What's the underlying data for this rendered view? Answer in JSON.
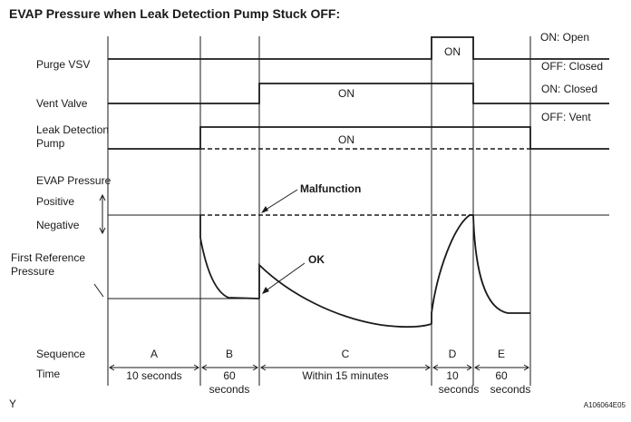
{
  "title": "EVAP Pressure when Leak Detection Pump Stuck OFF:",
  "rows": {
    "purge_vsv": "Purge VSV",
    "vent_valve": "Vent Valve",
    "ldp_line1": "Leak Detection",
    "ldp_line2": "Pump",
    "evap_pressure": "EVAP Pressure",
    "positive": "Positive",
    "negative": "Negative",
    "first_ref_line1": "First Reference",
    "first_ref_line2": "Pressure",
    "sequence": "Sequence",
    "time": "Time"
  },
  "right_labels": {
    "on_open": "ON: Open",
    "off_closed": "OFF: Closed",
    "on_closed": "ON: Closed",
    "off_vent": "OFF: Vent"
  },
  "signals": {
    "purge_on": "ON",
    "vent_on": "ON",
    "ldp_on": "ON"
  },
  "annotations": {
    "malfunction": "Malfunction",
    "ok": "OK"
  },
  "phases": [
    {
      "letter": "A",
      "time": "10 seconds",
      "time2": ""
    },
    {
      "letter": "B",
      "time": "60",
      "time2": "seconds"
    },
    {
      "letter": "C",
      "time": "Within 15 minutes",
      "time2": ""
    },
    {
      "letter": "D",
      "time": "10",
      "time2": "seconds"
    },
    {
      "letter": "E",
      "time": "60",
      "time2": "seconds"
    }
  ],
  "footer": {
    "left": "Y",
    "right": "A106064E05"
  }
}
